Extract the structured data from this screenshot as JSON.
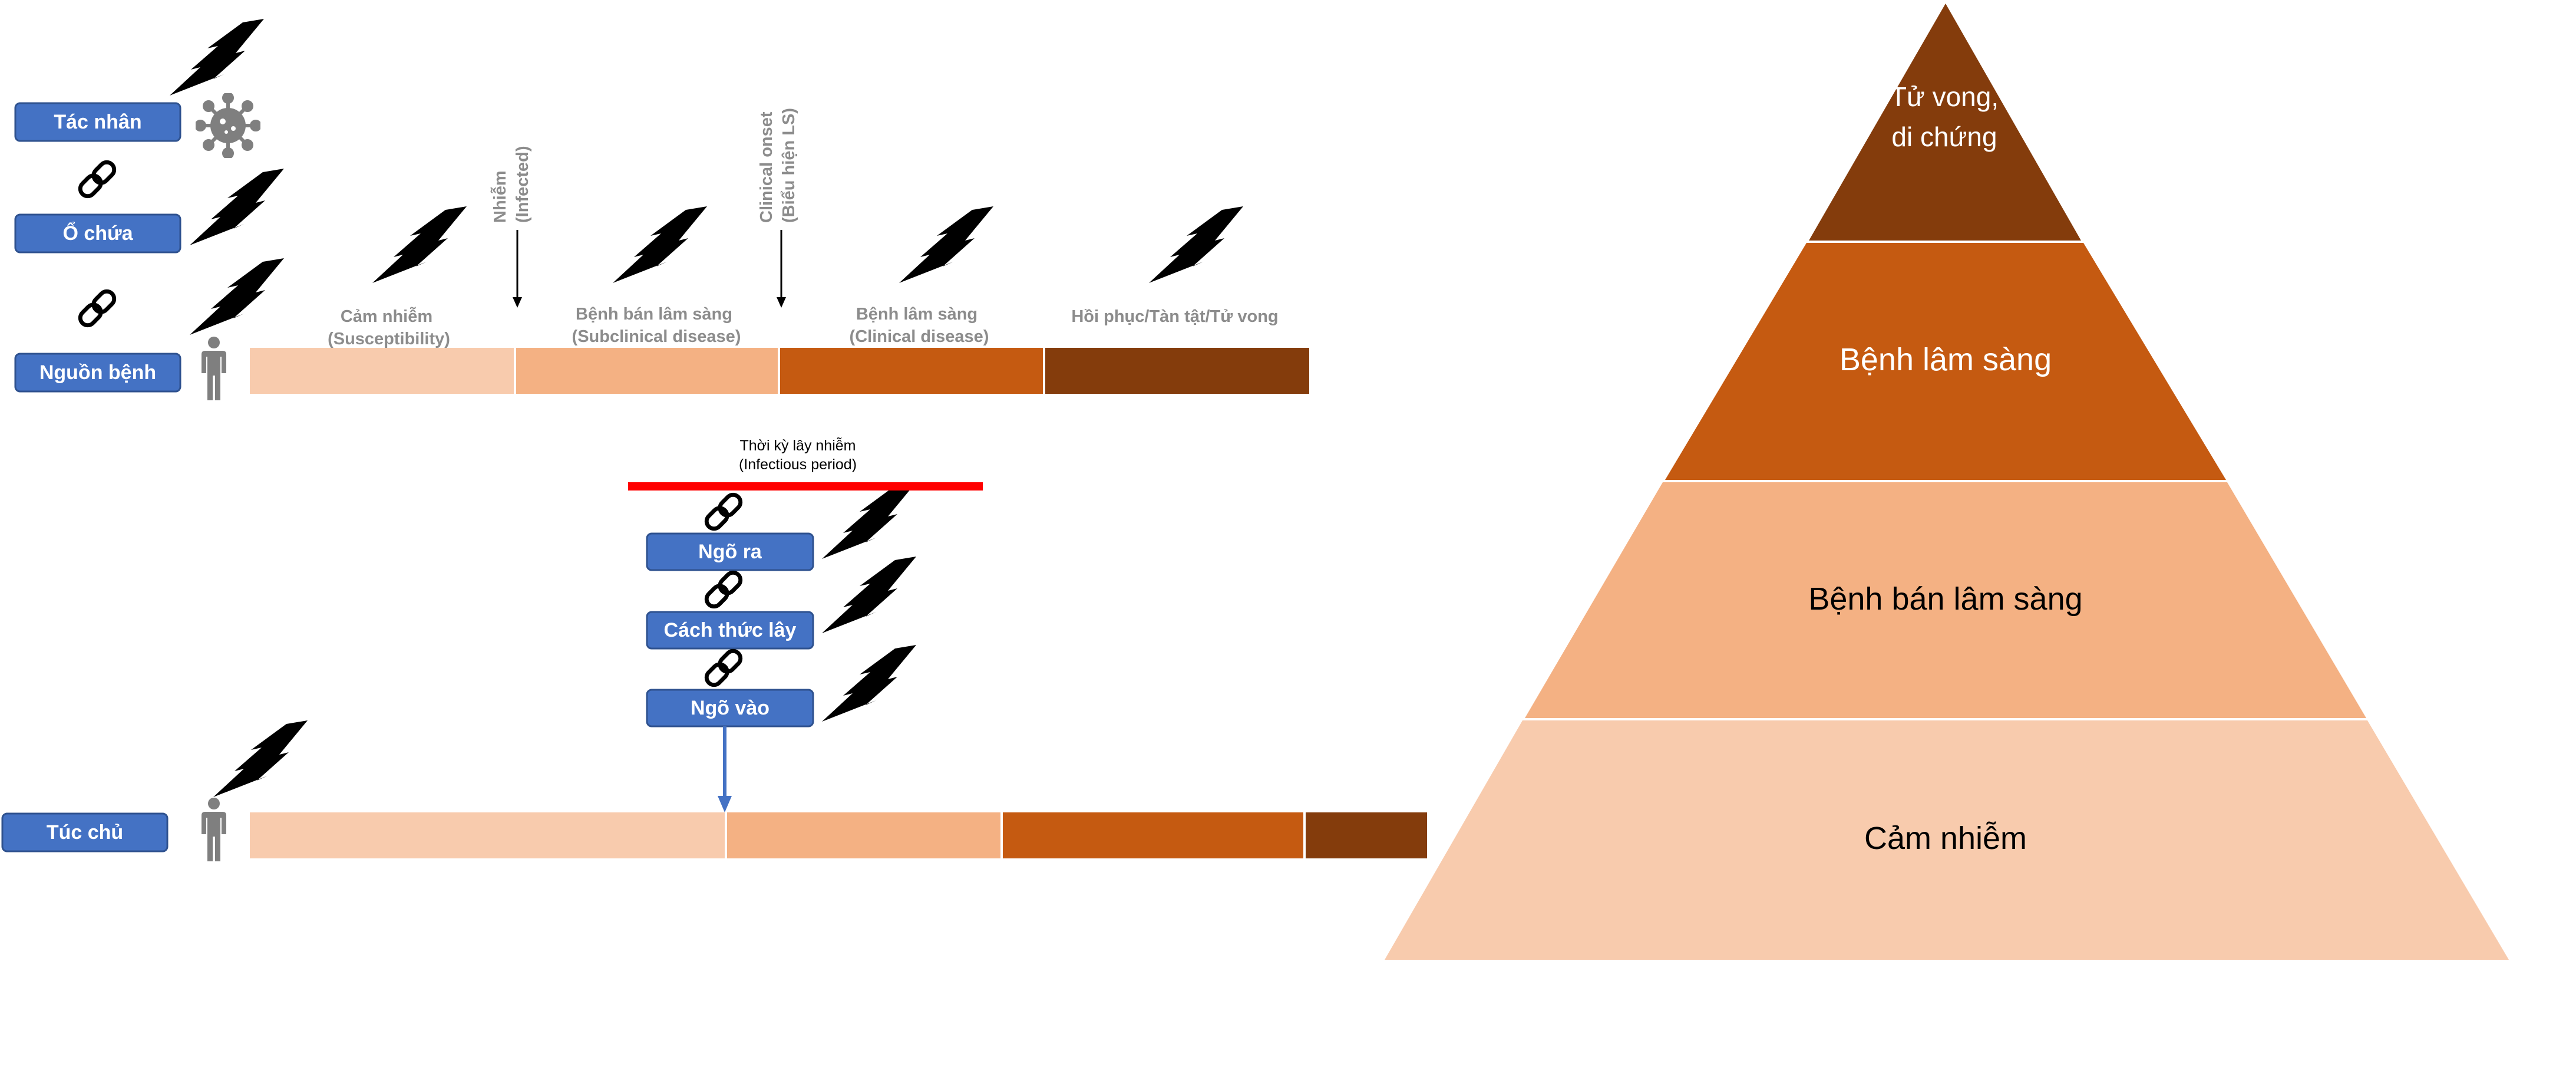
{
  "colors": {
    "box_blue": "#4472c4",
    "box_border": "#2f528f",
    "phase_susceptible": "#f8cbad",
    "phase_subclinical": "#f4b183",
    "phase_clinical": "#c55a11",
    "phase_outcome": "#843c0c",
    "infectious_bar": "#ff0000",
    "person_gray": "#7f7f7f"
  },
  "chain_labels": {
    "agent": "Tác nhân",
    "reservoir": "Ổ chứa",
    "source": "Nguồn bệnh",
    "host": "Túc chủ"
  },
  "transmission_labels": {
    "portal_exit": "Ngõ ra",
    "mode": "Cách thức lây",
    "portal_entry": "Ngõ vào"
  },
  "timeline": {
    "marker_infected_1": "Nhiễm",
    "marker_infected_2": "(Infected)",
    "marker_onset_1": "Clinical onset",
    "marker_onset_2": "(Biểu hiện LS)",
    "susceptibility_1": "Cảm nhiễm",
    "susceptibility_2": "(Susceptibility)",
    "subclinical_1": "Bệnh bán lâm sàng",
    "subclinical_2": "(Subclinical disease)",
    "clinical_1": "Bệnh lâm sàng",
    "clinical_2": "(Clinical disease)",
    "outcome": "Hồi phục/Tàn tật/Tử vong"
  },
  "infectious_period": {
    "line1": "Thời kỳ lây nhiễm",
    "line2": "(Infectious period)"
  },
  "pyramid": {
    "death_line1": "Tử vong,",
    "death_line2": "di chứng",
    "clinical": "Bệnh lâm sàng",
    "subclinical": "Bệnh bán lâm sàng",
    "susceptible": "Cảm nhiễm"
  },
  "icons": [
    "virus-icon",
    "person-icon",
    "chain-link-icon",
    "lightning-bolt-icon",
    "arrow-down-icon"
  ]
}
